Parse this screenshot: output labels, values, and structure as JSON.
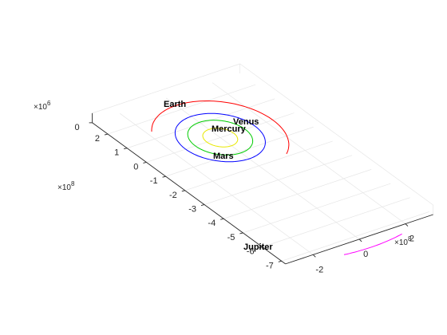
{
  "chart_data": {
    "type": "line",
    "projection": "3d",
    "grid": true,
    "x_axis": {
      "ticks": [
        -2,
        0,
        2
      ],
      "tick_labels": [
        "-2",
        "0",
        "2"
      ],
      "exponent_label": "×10",
      "exponent_power": "8"
    },
    "y_axis": {
      "ticks": [
        2,
        1,
        0,
        -1,
        -2,
        -3,
        -4,
        -5,
        -6,
        -7
      ],
      "tick_labels": [
        "2",
        "1",
        "0",
        "-1",
        "-2",
        "-3",
        "-4",
        "-5",
        "-6",
        "-7"
      ],
      "exponent_label": "×10",
      "exponent_power": "8"
    },
    "z_axis": {
      "ticks": [
        0
      ],
      "tick_labels": [
        "0"
      ],
      "exponent_label": "×10",
      "exponent_power": "6"
    },
    "series": [
      {
        "name": "Mercury",
        "color": "#e8e800",
        "orbit_radius": 0.58,
        "arc_degrees": [
          0,
          360
        ]
      },
      {
        "name": "Venus",
        "color": "#00cc00",
        "orbit_radius": 1.08,
        "arc_degrees": [
          0,
          360
        ]
      },
      {
        "name": "Earth",
        "color": "#0000ff",
        "orbit_radius": 1.5,
        "arc_degrees": [
          0,
          360
        ]
      },
      {
        "name": "Mars",
        "color": "#ff0000",
        "orbit_radius": 2.28,
        "arc_degrees": [
          -55,
          142
        ]
      },
      {
        "name": "Jupiter",
        "color": "#ff00ff",
        "orbit_radius": 7.78,
        "arc_degrees": [
          -98,
          -79
        ]
      }
    ],
    "annotations": [
      {
        "text": "Earth",
        "anchor": "Earth"
      },
      {
        "text": "Venus",
        "anchor": "Venus"
      },
      {
        "text": "Mercury",
        "anchor": "Mercury"
      },
      {
        "text": "Mars",
        "anchor": "Mars"
      },
      {
        "text": "Jupiter",
        "anchor": "Jupiter"
      }
    ]
  }
}
